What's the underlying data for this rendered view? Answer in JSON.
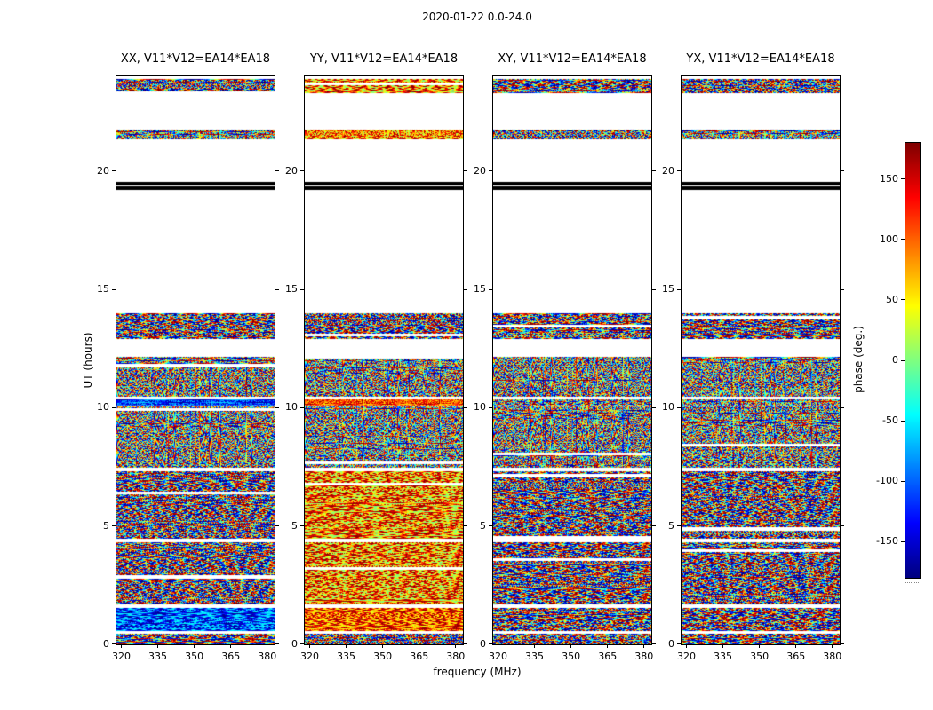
{
  "figure": {
    "title": "2020-01-22 0.0-24.0",
    "xlabel": "frequency (MHz)",
    "ylabel": "UT (hours)",
    "colorbar": {
      "label": "phase (deg.)"
    }
  },
  "chart_data": {
    "type": "heatmap",
    "title": "2020-01-22 0.0-24.0",
    "xlabel": "frequency (MHz)",
    "ylabel": "UT (hours)",
    "colorbar_label": "phase (deg.)",
    "colormap": "jet",
    "grid": false,
    "x_range": [
      318,
      383
    ],
    "y_range": [
      0,
      24
    ],
    "value_range": [
      -180,
      180
    ],
    "x_ticks": [
      320,
      335,
      350,
      365,
      380
    ],
    "y_ticks": [
      0,
      5,
      10,
      15,
      20
    ],
    "colorbar_ticks": [
      150,
      100,
      50,
      0,
      -50,
      -100,
      -150
    ],
    "panels": [
      {
        "id": "XX",
        "title": "XX, V11*V12=EA14*EA18"
      },
      {
        "id": "YY",
        "title": "YY, V11*V12=EA14*EA18"
      },
      {
        "id": "XY",
        "title": "XY, V11*V12=EA14*EA18"
      },
      {
        "id": "YX",
        "title": "YX, V11*V12=EA14*EA18"
      }
    ],
    "time_bands": [
      {
        "t0": 0.0,
        "t1": 0.45,
        "styles": {
          "XX": "rainbow-stripes",
          "YY": "rainbow-stripes",
          "XY": "rainbow-stripes",
          "YX": "rainbow-stripes"
        }
      },
      {
        "t0": 0.55,
        "t1": 1.55,
        "styles": {
          "XX": "blue-stripes",
          "YY": "red-stripes",
          "XY": "rainbow-stripes",
          "YX": "rainbow-stripes"
        }
      },
      {
        "t0": 1.7,
        "t1": 4.3,
        "styles": {
          "XX": "rainbow-stripes",
          "YY": "warm-stripes",
          "XY": "rainbow-stripes",
          "YX": "rainbow-stripes"
        }
      },
      {
        "t0": 4.45,
        "t1": 7.3,
        "styles": {
          "XX": "rainbow-stripes",
          "YY": "warm-stripes",
          "XY": "rainbow-stripes",
          "YX": "rainbow-stripes"
        }
      },
      {
        "t0": 7.45,
        "t1": 10.05,
        "styles": {
          "XX": "rainbow-noise",
          "YY": "rainbow-noise",
          "XY": "rainbow-noise",
          "YX": "rainbow-noise"
        }
      },
      {
        "t0": 10.08,
        "t1": 10.35,
        "styles": {
          "XX": "blue-noise",
          "YY": "red-noise",
          "XY": "rainbow-noise",
          "YX": "rainbow-noise"
        }
      },
      {
        "t0": 10.45,
        "t1": 12.15,
        "styles": {
          "XX": "rainbow-noise",
          "YY": "rainbow-noise",
          "XY": "rainbow-noise",
          "YX": "rainbow-noise"
        }
      },
      {
        "t0": 12.9,
        "t1": 14.0,
        "styles": {
          "XX": "rainbow-stripes",
          "YY": "rainbow-stripes",
          "XY": "rainbow-stripes",
          "YX": "rainbow-stripes"
        }
      },
      {
        "t0": 19.2,
        "t1": 19.55,
        "black": true
      },
      {
        "t0": 21.35,
        "t1": 21.75,
        "styles": {
          "XX": "rainbow-noise",
          "YY": "warm-noise",
          "XY": "rainbow-noise",
          "YX": "rainbow-noise"
        }
      },
      {
        "t0": 23.3,
        "t1": 23.9,
        "styles": {
          "XX": "rainbow-stripes",
          "YY": "warm-stripes",
          "XY": "rainbow-stripes",
          "YX": "rainbow-stripes"
        }
      }
    ]
  }
}
